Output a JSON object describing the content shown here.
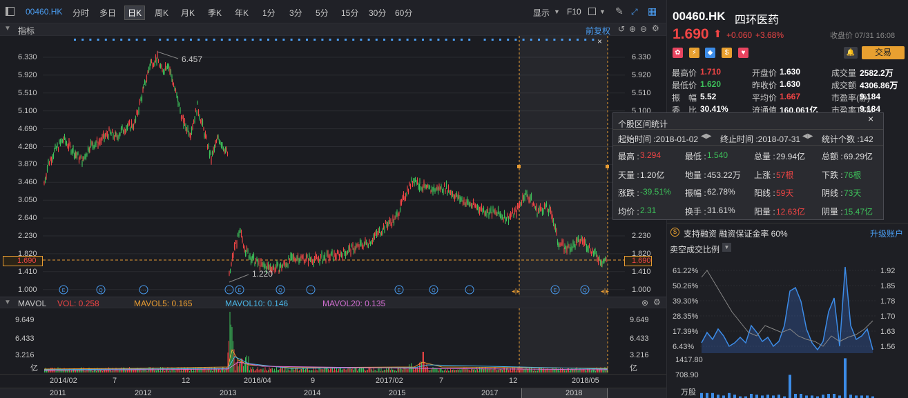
{
  "toolbar": {
    "code": "00460.HK",
    "tabs": [
      "分时",
      "多日",
      "日K",
      "周K",
      "月K",
      "季K",
      "年K",
      "1分",
      "3分",
      "5分",
      "15分",
      "30分",
      "60分"
    ],
    "active_tab": "日K",
    "display": "显示",
    "f10": "F10"
  },
  "indicator_bar": {
    "label": "指标",
    "restore": "前复权"
  },
  "price_chart": {
    "high_label": "6.457",
    "low_label": "1.220",
    "current_price_tag": "1.690",
    "left_ticks": [
      "6.330",
      "5.920",
      "5.510",
      "5.100",
      "4.690",
      "4.280",
      "3.870",
      "3.460",
      "3.050",
      "2.640",
      "2.230",
      "1.820",
      "1.410",
      "1.000"
    ],
    "right_ticks": [
      "6.330",
      "5.920",
      "5.510",
      "5.100",
      "4.690",
      "4.280",
      "3.870",
      "3.460",
      "3.050",
      "2.640",
      "2.230",
      "1.820",
      "1.410",
      "1.000"
    ]
  },
  "vol_bar": {
    "name": "MAVOL",
    "vol": "VOL: 0.258",
    "ma5": "MAVOL5: 0.165",
    "ma10": "MAVOL10: 0.146",
    "ma20": "MAVOL20: 0.135",
    "colors": {
      "vol": "#f04545",
      "ma5": "#e89c32",
      "ma10": "#4ab5e6",
      "ma20": "#d06ed0"
    }
  },
  "vol_ticks": [
    "9.649",
    "6.433",
    "3.216"
  ],
  "vol_unit": "亿",
  "date_axis": [
    "2014/02",
    "7",
    "12",
    "2016/04",
    "9",
    "2017/02",
    "7",
    "12",
    "2018/05"
  ],
  "year_axis": [
    "2011",
    "2012",
    "2013",
    "2014",
    "2015",
    "2017",
    "2018"
  ],
  "quote": {
    "code": "00460.HK",
    "name": "四环医药",
    "price": "1.690",
    "arrow": "⬆",
    "change": "+0.060",
    "pct": "+3.68%",
    "close_time": "收盘价 07/31 16:08",
    "trade": "交易",
    "fields": [
      {
        "l": "最高价",
        "v": "1.710",
        "c": "red"
      },
      {
        "l": "开盘价",
        "v": "1.630",
        "c": ""
      },
      {
        "l": "成交量",
        "v": "2582.2万",
        "c": ""
      },
      {
        "l": "最低价",
        "v": "1.620",
        "c": "grn"
      },
      {
        "l": "昨收价",
        "v": "1.630",
        "c": ""
      },
      {
        "l": "成交额",
        "v": "4306.86万",
        "c": ""
      },
      {
        "l": "振　幅",
        "v": "5.52",
        "c": ""
      },
      {
        "l": "平均价",
        "v": "1.667",
        "c": "red"
      },
      {
        "l": "市盈率(静)",
        "v": "9.184",
        "c": ""
      },
      {
        "l": "委　比",
        "v": "30.41%",
        "c": ""
      },
      {
        "l": "流通值",
        "v": "160.061亿",
        "c": ""
      },
      {
        "l": "市盈率TTM",
        "v": "9.184",
        "c": ""
      }
    ]
  },
  "margin": {
    "text": "支持融资 融资保证金率 60%",
    "upgrade": "升级账户"
  },
  "short_ratio": {
    "title": "卖空成交比例",
    "left_ticks": [
      "61.22%",
      "50.26%",
      "39.30%",
      "28.35%",
      "17.39%",
      "6.43%"
    ],
    "right_ticks": [
      "1.92",
      "1.85",
      "1.78",
      "1.70",
      "1.63",
      "1.56"
    ],
    "vol_ticks": [
      "1417.80",
      "708.90"
    ],
    "vol_unit": "万股"
  },
  "popup": {
    "title": "个股区间统计",
    "start": "起始时间 :2018-01-02",
    "end": "终止时间 :2018-07-31",
    "count": "统计个数 :142",
    "rows": [
      [
        {
          "l": "最高 :",
          "v": "3.294",
          "c": "red"
        },
        {
          "l": "最低 :",
          "v": "1.540",
          "c": "grn"
        },
        {
          "l": "总量 :",
          "v": "29.94亿",
          "c": ""
        },
        {
          "l": "总额 :",
          "v": "69.29亿",
          "c": ""
        }
      ],
      [
        {
          "l": "天量 :",
          "v": "1.20亿",
          "c": ""
        },
        {
          "l": "地量 :",
          "v": "453.22万",
          "c": ""
        },
        {
          "l": "上涨 :",
          "v": "57根",
          "c": "red"
        },
        {
          "l": "下跌 :",
          "v": "76根",
          "c": "grn"
        }
      ],
      [
        {
          "l": "涨跌 :",
          "v": "-39.51%",
          "c": "grn"
        },
        {
          "l": "振幅 :",
          "v": "62.78%",
          "c": ""
        },
        {
          "l": "阳线 :",
          "v": "59天",
          "c": "red"
        },
        {
          "l": "阴线 :",
          "v": "73天",
          "c": "grn"
        }
      ],
      [
        {
          "l": "均价 :",
          "v": "2.31",
          "c": "grn"
        },
        {
          "l": "换手 :",
          "v": "31.61%",
          "c": ""
        },
        {
          "l": "阳量 :",
          "v": "12.63亿",
          "c": "red"
        },
        {
          "l": "阴量 :",
          "v": "15.47亿",
          "c": "grn"
        }
      ]
    ]
  }
}
